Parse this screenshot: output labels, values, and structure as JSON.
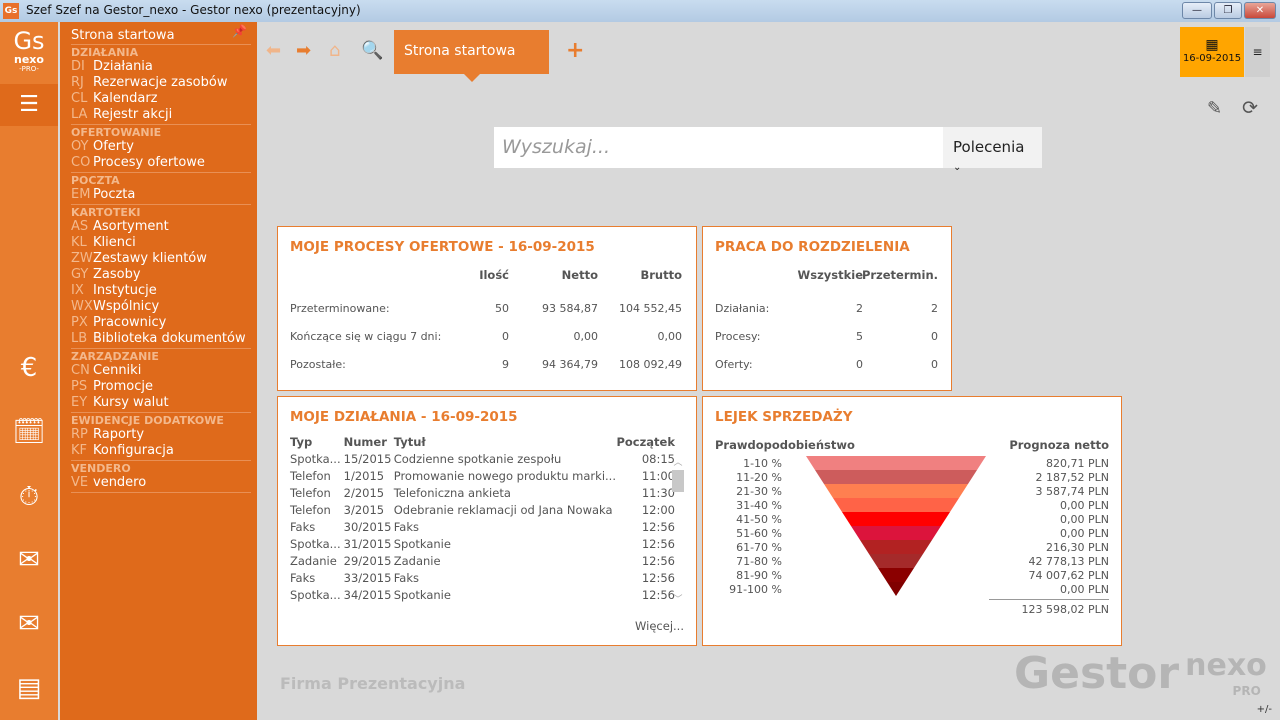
{
  "window": {
    "title": "Szef Szef na Gestor_nexo - Gestor nexo (prezentacyjny)",
    "app_icon": "Gs",
    "min": "—",
    "max": "❐",
    "close": "✕"
  },
  "logo": {
    "gs": "Gs",
    "nexo": "nexo",
    "pro": "-PRO-"
  },
  "menu": {
    "home": "Strona startowa",
    "sections": [
      {
        "title": "DZIAŁANIA",
        "items": [
          {
            "code": "DI",
            "label": "Działania"
          },
          {
            "code": "RJ",
            "label": "Rezerwacje zasobów"
          },
          {
            "code": "CL",
            "label": "Kalendarz"
          },
          {
            "code": "LA",
            "label": "Rejestr akcji"
          }
        ]
      },
      {
        "title": "OFERTOWANIE",
        "items": [
          {
            "code": "OY",
            "label": "Oferty"
          },
          {
            "code": "CO",
            "label": "Procesy ofertowe"
          }
        ]
      },
      {
        "title": "POCZTA",
        "items": [
          {
            "code": "EM",
            "label": "Poczta"
          }
        ]
      },
      {
        "title": "KARTOTEKI",
        "items": [
          {
            "code": "AS",
            "label": "Asortyment"
          },
          {
            "code": "KL",
            "label": "Klienci"
          },
          {
            "code": "ZW",
            "label": "Zestawy klientów"
          },
          {
            "code": "GY",
            "label": "Zasoby"
          },
          {
            "code": "IX",
            "label": "Instytucje"
          },
          {
            "code": "WX",
            "label": "Wspólnicy"
          },
          {
            "code": "PX",
            "label": "Pracownicy"
          },
          {
            "code": "LB",
            "label": "Biblioteka dokumentów"
          }
        ]
      },
      {
        "title": "ZARZĄDZANIE",
        "items": [
          {
            "code": "CN",
            "label": "Cenniki"
          },
          {
            "code": "PS",
            "label": "Promocje"
          },
          {
            "code": "EY",
            "label": "Kursy walut"
          }
        ]
      },
      {
        "title": "EWIDENCJE DODATKOWE",
        "items": [
          {
            "code": "RP",
            "label": "Raporty"
          },
          {
            "code": "KF",
            "label": "Konfiguracja"
          }
        ]
      },
      {
        "title": "VENDERO",
        "items": [
          {
            "code": "VE",
            "label": "vendero"
          }
        ]
      }
    ]
  },
  "tab": {
    "label": "Strona startowa",
    "add": "+"
  },
  "date": "16-09-2015",
  "search": {
    "placeholder": "Wyszukaj...",
    "command": "Polecenia"
  },
  "offers": {
    "title": "MOJE PROCESY OFERTOWE - 16-09-2015",
    "cols": [
      "Ilość",
      "Netto",
      "Brutto"
    ],
    "rows": [
      {
        "label": "Przeterminowane:",
        "v": [
          "50",
          "93 584,87",
          "104 552,45"
        ]
      },
      {
        "label": "Kończące się w ciągu 7 dni:",
        "v": [
          "0",
          "0,00",
          "0,00"
        ]
      },
      {
        "label": "Pozostałe:",
        "v": [
          "9",
          "94 364,79",
          "108 092,49"
        ]
      }
    ]
  },
  "work": {
    "title": "PRACA DO ROZDZIELENIA",
    "cols": [
      "Wszystkie",
      "Przetermin."
    ],
    "rows": [
      {
        "label": "Działania:",
        "v": [
          "2",
          "2"
        ]
      },
      {
        "label": "Procesy:",
        "v": [
          "5",
          "0"
        ]
      },
      {
        "label": "Oferty:",
        "v": [
          "0",
          "0"
        ]
      }
    ]
  },
  "acts": {
    "title": "MOJE DZIAŁANIA - 16-09-2015",
    "cols": [
      "Typ",
      "Numer",
      "Tytuł",
      "Początek"
    ],
    "rows": [
      [
        "Spotka...",
        "15/2015",
        "Codzienne spotkanie zespołu",
        "08:15"
      ],
      [
        "Telefon",
        "1/2015",
        "Promowanie nowego produktu marki...",
        "11:00"
      ],
      [
        "Telefon",
        "2/2015",
        "Telefoniczna ankieta",
        "11:30"
      ],
      [
        "Telefon",
        "3/2015",
        "Odebranie reklamacji od Jana Nowaka",
        "12:00"
      ],
      [
        "Faks",
        "30/2015",
        "Faks",
        "12:56"
      ],
      [
        "Spotka...",
        "31/2015",
        "Spotkanie",
        "12:56"
      ],
      [
        "Zadanie",
        "29/2015",
        "Zadanie",
        "12:56"
      ],
      [
        "Faks",
        "33/2015",
        "Faks",
        "12:56"
      ],
      [
        "Spotka...",
        "34/2015",
        "Spotkanie",
        "12:56"
      ]
    ],
    "more": "Więcej..."
  },
  "funnel": {
    "title": "LEJEK SPRZEDAŻY",
    "left_header": "Prawdopodobieństwo",
    "right_header": "Prognoza netto",
    "bands": [
      {
        "label": "1-10 %",
        "value": "820,71 PLN",
        "color": "#f08080"
      },
      {
        "label": "11-20 %",
        "value": "2 187,52 PLN",
        "color": "#cd5c5c"
      },
      {
        "label": "21-30 %",
        "value": "3 587,74 PLN",
        "color": "#ff7f50"
      },
      {
        "label": "31-40 %",
        "value": "0,00 PLN",
        "color": "#ff6347"
      },
      {
        "label": "41-50 %",
        "value": "0,00 PLN",
        "color": "#ff0000"
      },
      {
        "label": "51-60 %",
        "value": "0,00 PLN",
        "color": "#dc143c"
      },
      {
        "label": "61-70 %",
        "value": "216,30 PLN",
        "color": "#b22222"
      },
      {
        "label": "71-80 %",
        "value": "42 778,13 PLN",
        "color": "#a52a2a"
      },
      {
        "label": "81-90 %",
        "value": "74 007,62 PLN",
        "color": "#8b0000"
      },
      {
        "label": "91-100 %",
        "value": "0,00 PLN",
        "color": "#800000"
      }
    ],
    "total": "123 598,02 PLN"
  },
  "footer": {
    "company": "Firma Prezentacyjna",
    "brand": "Gestor",
    "brand_nexo": "nexo",
    "brand_pro": "PRO",
    "zoom": "+/-"
  },
  "colors": {
    "accent": "#e87d2f",
    "menu": "#df6a1b",
    "date": "#ffa500"
  }
}
